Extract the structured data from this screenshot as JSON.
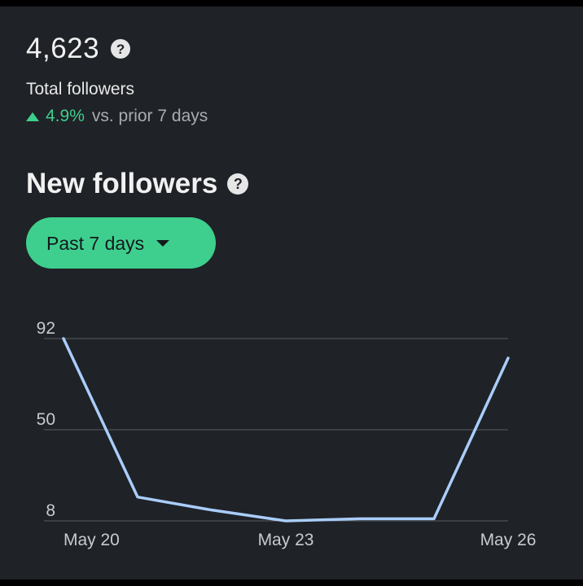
{
  "summary": {
    "total_count": "4,623",
    "total_label": "Total followers",
    "change_percent": "4.9%",
    "change_direction": "up",
    "change_description": "vs. prior 7 days",
    "help_icon": "question-circle-icon"
  },
  "new_followers": {
    "title": "New followers",
    "help_icon": "question-circle-icon",
    "range_selector": {
      "label": "Past 7 days",
      "icon": "caret-down-icon"
    }
  },
  "colors": {
    "accent": "#3ecf8e",
    "series": "#a9cdfb",
    "background": "#1f2226"
  },
  "chart_data": {
    "type": "line",
    "x": [
      "May 20",
      "May 21",
      "May 22",
      "May 23",
      "May 24",
      "May 25",
      "May 26"
    ],
    "series": [
      {
        "values": [
          92,
          19,
          13,
          8,
          9,
          9,
          83
        ]
      }
    ],
    "y_ticks": [
      92,
      50,
      8
    ],
    "x_tick_labels": [
      "May 20",
      "May 23",
      "May 26"
    ],
    "ylim": [
      8,
      92
    ],
    "grid": true,
    "title": "",
    "xlabel": "",
    "ylabel": ""
  }
}
